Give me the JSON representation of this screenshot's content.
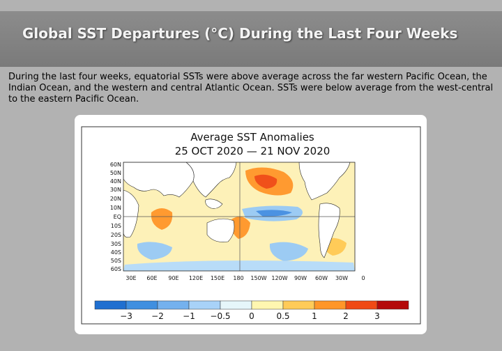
{
  "slide": {
    "title": "Global SST Departures (°C) During the Last Four Weeks",
    "body": "During the last four weeks, equatorial SSTs were above average across the far western Pacific Ocean, the Indian Ocean, and the western and central Atlantic Ocean. SSTs were below average from the west-central to the eastern Pacific Ocean."
  },
  "map": {
    "title": "Average SST Anomalies",
    "subtitle": "25 OCT 2020 — 21 NOV 2020",
    "lat_labels": [
      "60N",
      "50N",
      "40N",
      "30N",
      "20N",
      "10N",
      "EQ",
      "10S",
      "20S",
      "30S",
      "40S",
      "50S",
      "60S"
    ],
    "lon_labels": [
      "30E",
      "60E",
      "90E",
      "120E",
      "150E",
      "180",
      "150W",
      "120W",
      "90W",
      "60W",
      "30W",
      "0"
    ],
    "colorbar": {
      "colors": [
        "#1f6fd0",
        "#3f8fe0",
        "#74b1ee",
        "#a8d2f8",
        "#e6f6fa",
        "#fff6b0",
        "#ffcb58",
        "#ff9628",
        "#f04a14",
        "#b40a0a"
      ],
      "labels": [
        "−3",
        "−2",
        "−1",
        "−0.5",
        "0",
        "0.5",
        "1",
        "2",
        "3"
      ]
    },
    "colors": {
      "land": "#ffffff",
      "near_zero": "#fdf1b8",
      "warm": "#ff9a30",
      "hot": "#f0501a",
      "cool": "#9ccbf3",
      "cold": "#4b92e2",
      "gridline": "#555555"
    }
  }
}
